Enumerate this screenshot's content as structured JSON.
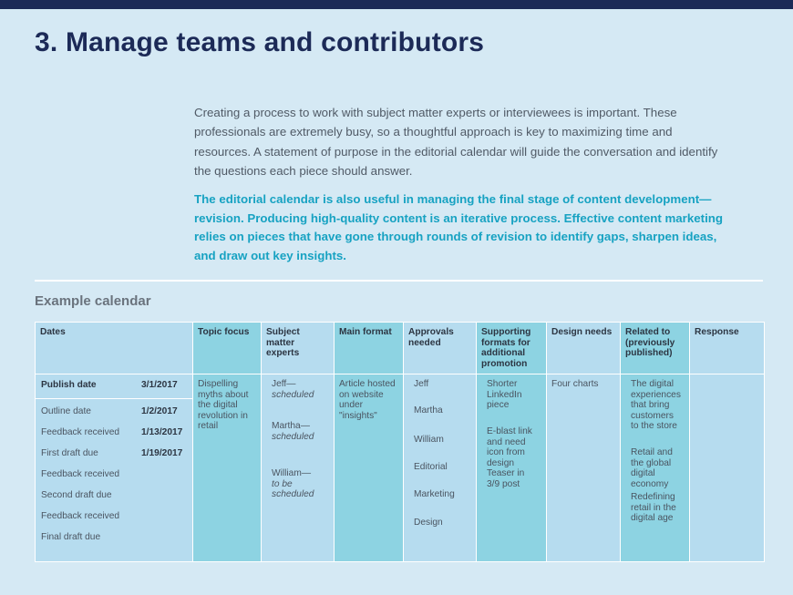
{
  "title": "3. Manage teams and contributors",
  "intro": "Creating a process to work with subject matter experts or interviewees is important. These professionals are extremely busy, so a thoughtful approach is key to maximizing time and resources. A statement of purpose in the editorial calendar will guide the conversation and identify the questions each piece should answer.",
  "highlight": "The editorial calendar is also useful in managing the final stage of content development—revision. Producing high-quality content is an iterative process. Effective content marketing relies on pieces that have gone through rounds of revision to identify gaps, sharpen ideas, and draw out key insights.",
  "calendar": {
    "title": "Example calendar",
    "headers": {
      "dates": "Dates",
      "topic": "Topic focus",
      "experts": "Subject matter experts",
      "format": "Main format",
      "approvals": "Approvals needed",
      "promotion": "Supporting formats for additional promotion",
      "design": "Design needs",
      "related": "Related to (previously published)",
      "response": "Response"
    },
    "dates": [
      {
        "label": "Publish date",
        "date": "3/1/2017"
      },
      {
        "label": "Outline date",
        "date": "1/2/2017"
      },
      {
        "label": "Feedback received",
        "date": "1/13/2017"
      },
      {
        "label": "First draft due",
        "date": "1/19/2017"
      },
      {
        "label": "Feedback received",
        "date": ""
      },
      {
        "label": "Second draft due",
        "date": ""
      },
      {
        "label": "Feedback received",
        "date": ""
      },
      {
        "label": "Final draft due",
        "date": ""
      }
    ],
    "topic": "Dispelling myths about the digital revolution in retail",
    "experts": [
      {
        "name": "Jeff—",
        "status": "scheduled"
      },
      {
        "name": "Martha—",
        "status": "scheduled"
      },
      {
        "name": "William—",
        "status": "to be scheduled"
      }
    ],
    "format": "Article hosted on website under \"insights\"",
    "approvals": [
      "Jeff",
      "Martha",
      "William",
      "Editorial",
      "Marketing",
      "Design"
    ],
    "promotion": [
      "Shorter LinkedIn piece",
      "E-blast link and need icon from design",
      "Teaser in 3/9 post"
    ],
    "design": "Four charts",
    "related": [
      "The digital experiences that bring customers to the store",
      "Retail and the global digital economy",
      "Redefining retail in the digital age"
    ],
    "response": ""
  }
}
